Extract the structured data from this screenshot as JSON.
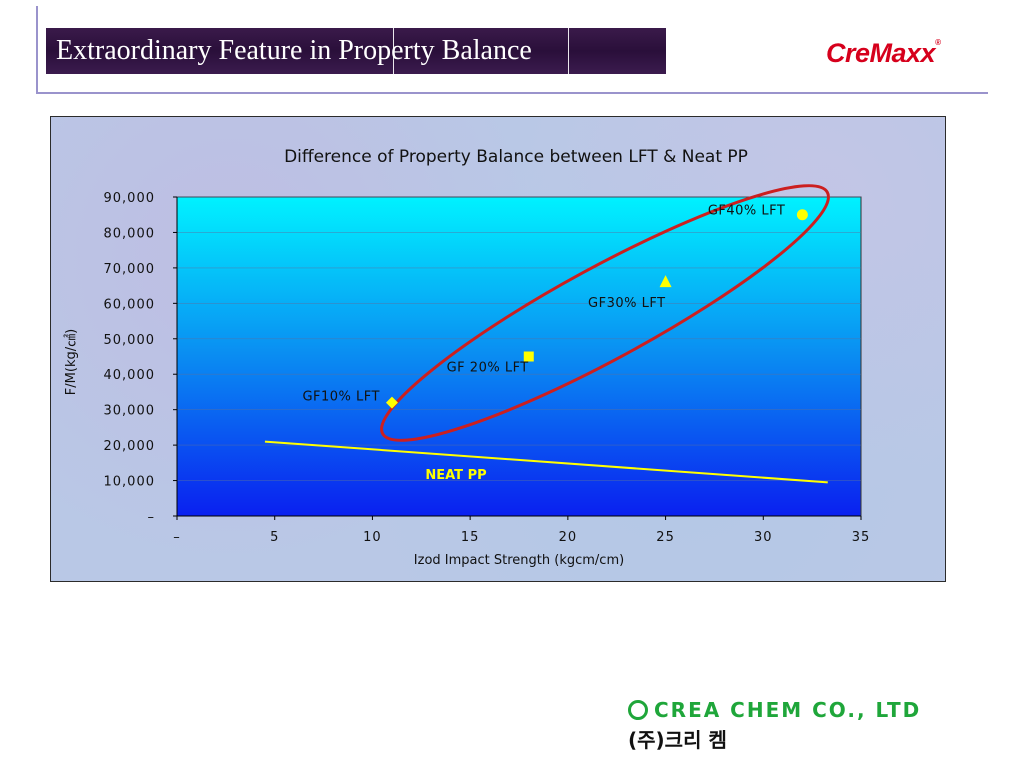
{
  "slide": {
    "title_part1": "Extraordinary Feature in",
    "title_part2": "Property Bal",
    "title_part3": "ance",
    "logo": "CreMaxx",
    "logo_mark": "®",
    "footer_company": "CREA CHEM CO., LTD",
    "footer_korean": "(주)크리 켐"
  },
  "chart_data": {
    "type": "scatter",
    "title": "Difference of Property Balance between LFT & Neat PP",
    "xlabel": "Izod Impact Strength (kgcm/cm)",
    "ylabel": "F/M(kg/㎠)",
    "xlim": [
      0,
      35
    ],
    "ylim": [
      0,
      90000
    ],
    "x_ticks": [
      {
        "value": 0,
        "label": "–"
      },
      {
        "value": 5,
        "label": "5"
      },
      {
        "value": 10,
        "label": "10"
      },
      {
        "value": 15,
        "label": "15"
      },
      {
        "value": 20,
        "label": "20"
      },
      {
        "value": 25,
        "label": "25"
      },
      {
        "value": 30,
        "label": "30"
      },
      {
        "value": 35,
        "label": "35"
      }
    ],
    "y_ticks": [
      {
        "value": 0,
        "label": "–"
      },
      {
        "value": 10000,
        "label": "10,000"
      },
      {
        "value": 20000,
        "label": "20,000"
      },
      {
        "value": 30000,
        "label": "30,000"
      },
      {
        "value": 40000,
        "label": "40,000"
      },
      {
        "value": 50000,
        "label": "50,000"
      },
      {
        "value": 60000,
        "label": "60,000"
      },
      {
        "value": 70000,
        "label": "70,000"
      },
      {
        "value": 80000,
        "label": "80,000"
      },
      {
        "value": 90000,
        "label": "90,000"
      }
    ],
    "grid": true,
    "points": [
      {
        "label": "GF10% LFT",
        "x": 11,
        "y": 32000,
        "marker": "diamond"
      },
      {
        "label": "GF 20% LFT",
        "x": 18,
        "y": 45000,
        "marker": "square"
      },
      {
        "label": "GF30% LFT",
        "x": 25,
        "y": 66000,
        "marker": "triangle"
      },
      {
        "label": "GF40% LFT",
        "x": 32,
        "y": 85000,
        "marker": "circle"
      }
    ],
    "line_series": {
      "label": "NEAT PP",
      "points": [
        {
          "x": 4.5,
          "y": 21000
        },
        {
          "x": 33.3,
          "y": 9500
        }
      ]
    },
    "marker_color": "#ffff00",
    "line_color": "#ffff00",
    "ellipse_color": "#cc1f1f"
  }
}
